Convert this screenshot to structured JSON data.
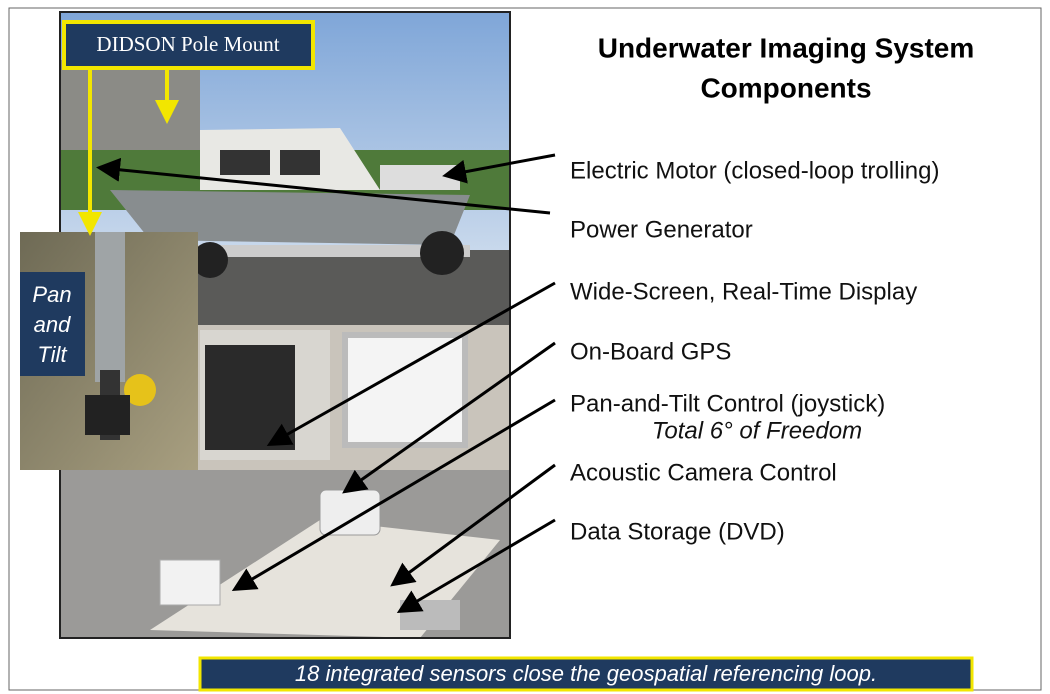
{
  "header": {
    "title_lines": [
      "Underwater Imaging System",
      "Components"
    ]
  },
  "photo_labels": {
    "pole_mount": "DIDSON Pole Mount",
    "pan_tilt": [
      "Pan",
      "and",
      "Tilt"
    ]
  },
  "components": [
    {
      "label": "Electric Motor (closed-loop trolling)"
    },
    {
      "label": "Power Generator"
    },
    {
      "label": "Wide-Screen, Real-Time Display"
    },
    {
      "label": "On-Board GPS"
    },
    {
      "label": "Pan-and-Tilt Control (joystick)",
      "note": "Total 6° of Freedom"
    },
    {
      "label": "Acoustic Camera Control"
    },
    {
      "label": "Data Storage (DVD)"
    }
  ],
  "footer": "18 integrated sensors close the geospatial referencing loop."
}
